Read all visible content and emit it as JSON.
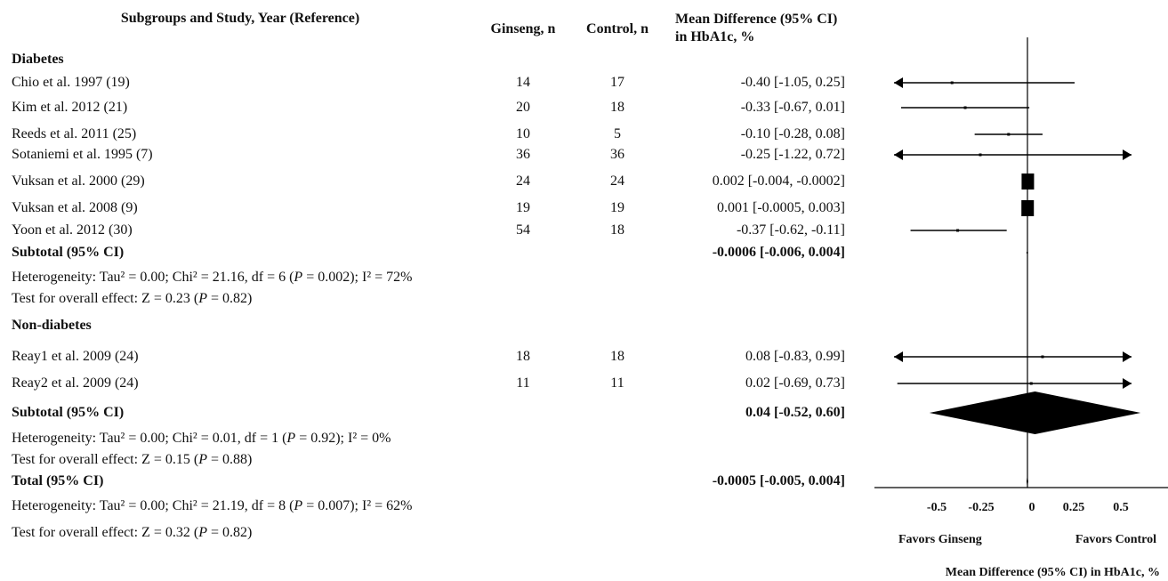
{
  "headers": {
    "study": "Subgroups and Study, Year  (Reference)",
    "ginseng": "Ginseng, n",
    "control": "Control, n",
    "md_line1": "Mean Difference (95% CI)",
    "md_line2": "in HbA1c, %"
  },
  "groups": [
    {
      "name": "Diabetes",
      "studies": [
        {
          "label": "Chio et al. 1997  (19)",
          "ginseng": "14",
          "control": "17",
          "ci_text": "-0.40 [-1.05, 0.25]"
        },
        {
          "label": "Kim et al. 2012  (21)",
          "ginseng": "20",
          "control": "18",
          "ci_text": "-0.33 [-0.67, 0.01]"
        },
        {
          "label": "Reeds et al. 2011  (25)",
          "ginseng": "10",
          "control": "5",
          "ci_text": "-0.10 [-0.28, 0.08]"
        },
        {
          "label": "Sotaniemi et al. 1995  (7)",
          "ginseng": "36",
          "control": "36",
          "ci_text": "-0.25 [-1.22, 0.72]"
        },
        {
          "label": "Vuksan et al. 2000  (29)",
          "ginseng": "24",
          "control": "24",
          "ci_text": "0.002 [-0.004, -0.0002]"
        },
        {
          "label": "Vuksan et al. 2008  (9)",
          "ginseng": "19",
          "control": "19",
          "ci_text": "0.001 [-0.0005, 0.003]"
        },
        {
          "label": "Yoon et al. 2012 (30)",
          "ginseng": "54",
          "control": "18",
          "ci_text": "-0.37 [-0.62, -0.11]"
        }
      ],
      "subtotal_label": "Subtotal (95% CI)",
      "subtotal_text": "-0.0006 [-0.006, 0.004]",
      "heterogeneity": {
        "pre": "Heterogeneity: Tau² = 0.00; Chi² = 21.16, df = 6 (",
        "p": "P",
        "post": " = 0.002); I² = 72%"
      },
      "overall": {
        "pre": "Test for overall effect: Z = 0.23 (",
        "p": "P",
        "post": " = 0.82)"
      }
    },
    {
      "name": "Non-diabetes",
      "studies": [
        {
          "label": "Reay1 et al. 2009 (24)",
          "ginseng": "18",
          "control": "18",
          "ci_text": "0.08 [-0.83, 0.99]"
        },
        {
          "label": "Reay2 et al. 2009 (24)",
          "ginseng": "11",
          "control": "11",
          "ci_text": "0.02 [-0.69, 0.73]"
        }
      ],
      "subtotal_label": "Subtotal (95% CI)",
      "subtotal_text": "0.04 [-0.52, 0.60]",
      "heterogeneity": {
        "pre": "Heterogeneity: Tau² = 0.00; Chi² = 0.01, df = 1 (",
        "p": "P",
        "post": " = 0.92); I² = 0%"
      },
      "overall": {
        "pre": "Test for overall effect: Z = 0.15 (",
        "p": "P",
        "post": " = 0.88)"
      }
    }
  ],
  "total": {
    "label": "Total (95% CI)",
    "text": "-0.0005 [-0.005, 0.004]",
    "heterogeneity": {
      "pre": "Heterogeneity: Tau² = 0.00; Chi² = 21.19, df = 8 (",
      "p": "P",
      "post": " = 0.007); I² = 62%"
    },
    "overall": {
      "pre": "Test for overall effect: Z = 0.32 (",
      "p": "P",
      "post": " = 0.82)"
    }
  },
  "chart_data": {
    "type": "forest",
    "x_ticks": [
      "-0.5",
      "-0.25",
      "0",
      "0.25",
      "0.5"
    ],
    "xlim": [
      -0.75,
      0.75
    ],
    "favors_left": "Favors Ginseng",
    "favors_right": "Favors Control",
    "xlabel": "Mean Difference (95% CI) in HbA1c, %",
    "studies": [
      {
        "est": -0.4,
        "lo": -1.05,
        "hi": 0.25
      },
      {
        "est": -0.33,
        "lo": -0.67,
        "hi": 0.01
      },
      {
        "est": -0.1,
        "lo": -0.28,
        "hi": 0.08
      },
      {
        "est": -0.25,
        "lo": -1.22,
        "hi": 0.72
      },
      {
        "est": 0.002,
        "lo": -0.004,
        "hi": -0.0002
      },
      {
        "est": 0.001,
        "lo": -0.0005,
        "hi": 0.003
      },
      {
        "est": -0.37,
        "lo": -0.62,
        "hi": -0.11
      },
      {
        "est": 0.08,
        "lo": -0.83,
        "hi": 0.99
      },
      {
        "est": 0.02,
        "lo": -0.69,
        "hi": 0.73
      }
    ],
    "subtotals": [
      {
        "est": -0.0006,
        "lo": -0.006,
        "hi": 0.004
      },
      {
        "est": 0.04,
        "lo": -0.52,
        "hi": 0.6
      }
    ],
    "total": {
      "est": -0.0005,
      "lo": -0.005,
      "hi": 0.004
    }
  }
}
